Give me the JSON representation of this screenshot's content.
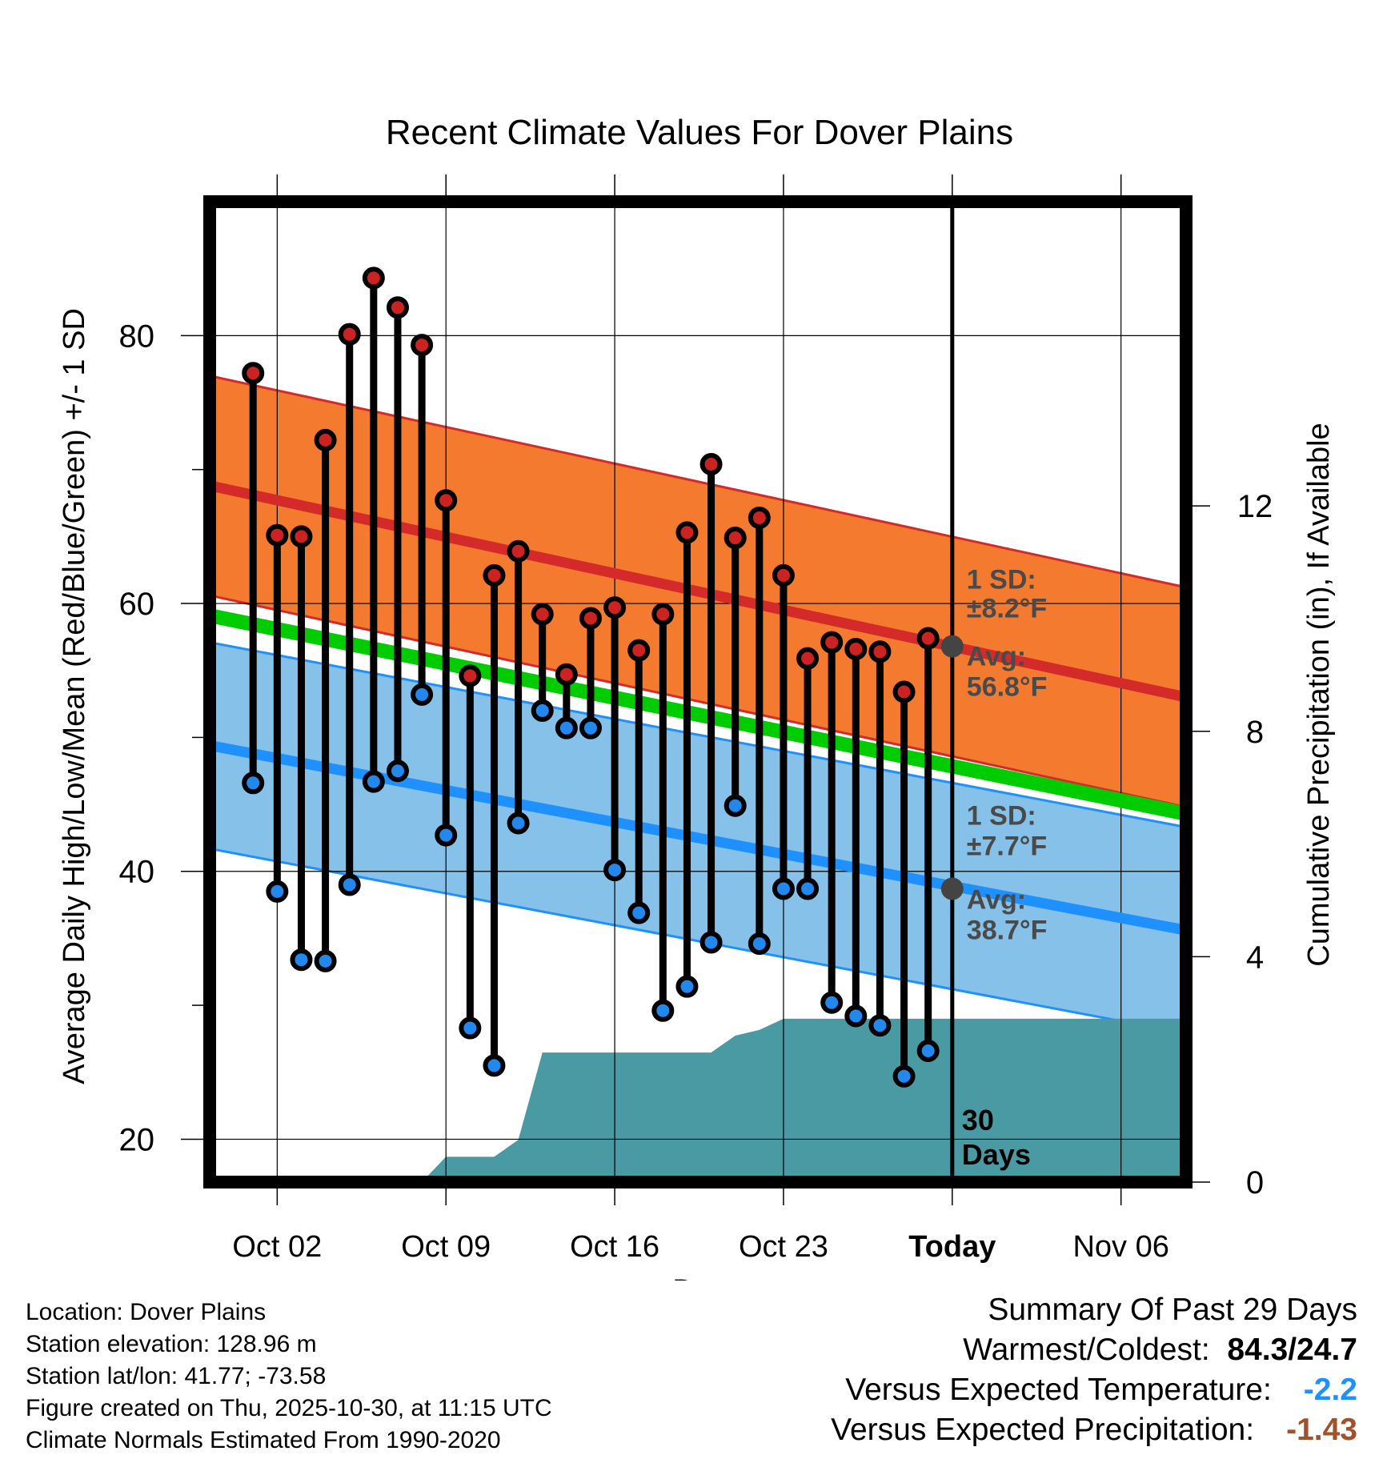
{
  "chart_data": {
    "type": "line",
    "title": "Recent Climate Values For Dover Plains",
    "xlabel": "Day",
    "ylabel": "Average Daily High/Low/Mean (Red/Blue/Green) +/- 1 SD",
    "y2label": "Cumulative Precipitation (in), If Available",
    "x_ticks": [
      "Oct 02",
      "Oct 09",
      "Oct 16",
      "Oct 23",
      "Today",
      "Nov 06"
    ],
    "x_tick_days": [
      2,
      9,
      16,
      23,
      30,
      37
    ],
    "xlim": [
      -0.8,
      39.7
    ],
    "ylim": [
      16.8,
      90
    ],
    "y_ticks": [
      20,
      40,
      60,
      80
    ],
    "y2lim": [
      0,
      17.4
    ],
    "y2_ticks": [
      0,
      4,
      8,
      12
    ],
    "days": [
      1,
      2,
      3,
      4,
      5,
      6,
      7,
      8,
      9,
      10,
      11,
      12,
      13,
      14,
      15,
      16,
      17,
      18,
      19,
      20,
      21,
      22,
      23,
      24,
      25,
      26,
      27,
      28,
      29
    ],
    "highs": [
      77.2,
      65.1,
      65.0,
      72.2,
      80.1,
      84.3,
      82.1,
      79.3,
      67.7,
      54.6,
      62.1,
      63.9,
      59.2,
      54.7,
      58.9,
      59.7,
      56.5,
      59.2,
      65.3,
      70.4,
      64.9,
      66.4,
      62.1,
      55.9,
      57.1,
      56.6,
      56.4,
      53.4,
      57.4
    ],
    "lows": [
      46.6,
      38.5,
      33.4,
      33.3,
      39.0,
      46.7,
      47.5,
      53.2,
      42.7,
      28.3,
      25.5,
      43.6,
      52.0,
      50.7,
      50.7,
      40.1,
      36.9,
      29.6,
      31.4,
      34.7,
      44.9,
      34.6,
      38.7,
      38.7,
      30.2,
      29.2,
      28.5,
      24.7,
      26.6
    ],
    "normal_high": {
      "start": 68.8,
      "end": 53.0,
      "sd": 8.2
    },
    "normal_low": {
      "start": 49.4,
      "end": 35.6,
      "sd": 7.7
    },
    "normal_mean": {
      "start": 59.1,
      "end": 44.3
    },
    "today_day": 30,
    "today_high_avg": 56.8,
    "today_low_avg": 38.7,
    "precip_days": [
      8,
      9,
      10,
      11,
      12,
      13,
      14,
      15,
      16,
      17,
      18,
      19,
      20,
      21,
      22,
      23,
      24,
      25,
      26,
      27,
      28,
      29,
      30,
      39.7
    ],
    "precip_cum": [
      0,
      0.45,
      0.45,
      0.45,
      0.75,
      2.3,
      2.3,
      2.3,
      2.3,
      2.3,
      2.3,
      2.3,
      2.3,
      2.6,
      2.7,
      2.9,
      2.9,
      2.9,
      2.9,
      2.9,
      2.9,
      2.9,
      2.9,
      2.9
    ],
    "annotations": {
      "high_sd": "1 SD:",
      "high_sd_val": "±8.2°F",
      "high_avg": "Avg:",
      "high_avg_val": "56.8°F",
      "low_sd": "1 SD:",
      "low_sd_val": "±7.7°F",
      "low_avg": "Avg:",
      "low_avg_val": "38.7°F",
      "window_num": "30",
      "window_label": "Days"
    },
    "colors": {
      "high_band": "#f47a30",
      "high_line": "#d42a2a",
      "low_band": "#85c1e9",
      "low_line": "#1e90ff",
      "mean_line": "#00cc00",
      "precip": "#4a9aa3",
      "high_marker": "#cc2222",
      "low_marker": "#2288ee"
    }
  },
  "info": {
    "location": "Location: Dover Plains",
    "elevation": "Station elevation: 128.96 m",
    "latlon": "Station lat/lon: 41.77; -73.58",
    "created": "Figure created on Thu, 2025-10-30, at 11:15 UTC",
    "normals": "Climate Normals Estimated From 1990-2020"
  },
  "summary": {
    "title": "Summary Of Past 29 Days",
    "warm_label": "Warmest/Coldest:",
    "warm_value": "84.3/24.7",
    "temp_label": "Versus Expected Temperature:",
    "temp_value": "-2.2",
    "prec_label": "Versus Expected Precipitation:",
    "prec_value": "-1.43"
  }
}
